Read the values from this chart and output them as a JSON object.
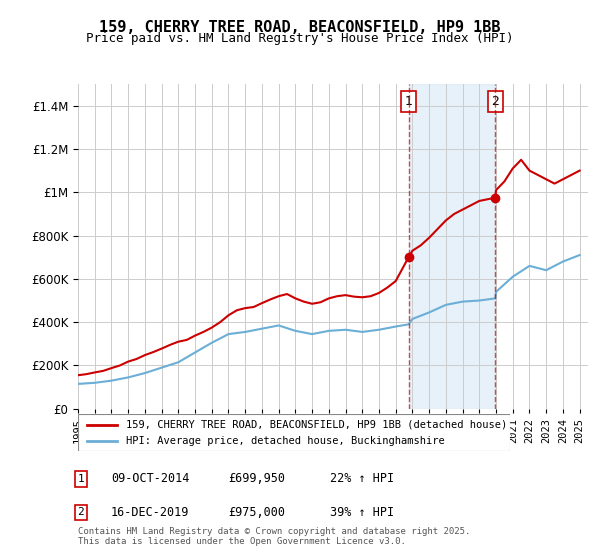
{
  "title": "159, CHERRY TREE ROAD, BEACONSFIELD, HP9 1BB",
  "subtitle": "Price paid vs. HM Land Registry's House Price Index (HPI)",
  "legend_line1": "159, CHERRY TREE ROAD, BEACONSFIELD, HP9 1BB (detached house)",
  "legend_line2": "HPI: Average price, detached house, Buckinghamshire",
  "footer": "Contains HM Land Registry data © Crown copyright and database right 2025.\nThis data is licensed under the Open Government Licence v3.0.",
  "annotation1_label": "1",
  "annotation1_date": "09-OCT-2014",
  "annotation1_price": "£699,950",
  "annotation1_hpi": "22% ↑ HPI",
  "annotation2_label": "2",
  "annotation2_date": "16-DEC-2019",
  "annotation2_price": "£975,000",
  "annotation2_hpi": "39% ↑ HPI",
  "purchase1_x": 2014.77,
  "purchase1_y": 699950,
  "purchase2_x": 2019.96,
  "purchase2_y": 975000,
  "hpi_color": "#6baed6",
  "price_color": "#cc0000",
  "shaded_color": "#d6e8f5",
  "annotation_line_color": "#cc0000",
  "ylim": [
    0,
    1500000
  ],
  "xlim_start": 1995.0,
  "xlim_end": 2025.5,
  "hpi_series_x": [
    1995,
    1996,
    1997,
    1998,
    1999,
    2000,
    2001,
    2002,
    2003,
    2004,
    2005,
    2006,
    2007,
    2008,
    2009,
    2010,
    2011,
    2012,
    2013,
    2014,
    2014.77,
    2015,
    2016,
    2017,
    2018,
    2019,
    2019.96,
    2020,
    2021,
    2022,
    2023,
    2024,
    2025
  ],
  "hpi_series_y": [
    115000,
    120000,
    130000,
    145000,
    165000,
    190000,
    215000,
    260000,
    305000,
    345000,
    355000,
    370000,
    385000,
    360000,
    345000,
    360000,
    365000,
    355000,
    365000,
    380000,
    390000,
    415000,
    445000,
    480000,
    495000,
    500000,
    510000,
    540000,
    610000,
    660000,
    640000,
    680000,
    710000
  ],
  "price_series_x": [
    1995,
    1995.5,
    1996,
    1996.5,
    1997,
    1997.5,
    1998,
    1998.5,
    1999,
    1999.5,
    2000,
    2000.5,
    2001,
    2001.5,
    2002,
    2002.5,
    2003,
    2003.5,
    2004,
    2004.5,
    2005,
    2005.5,
    2006,
    2006.5,
    2007,
    2007.5,
    2008,
    2008.5,
    2009,
    2009.5,
    2010,
    2010.5,
    2011,
    2011.5,
    2012,
    2012.5,
    2013,
    2013.5,
    2014,
    2014.77,
    2015,
    2015.5,
    2016,
    2016.5,
    2017,
    2017.5,
    2018,
    2018.5,
    2019,
    2019.96,
    2020,
    2020.5,
    2021,
    2021.5,
    2022,
    2022.5,
    2023,
    2023.5,
    2024,
    2024.5,
    2025
  ],
  "price_series_y": [
    155000,
    160000,
    168000,
    175000,
    188000,
    200000,
    218000,
    230000,
    248000,
    262000,
    278000,
    295000,
    310000,
    318000,
    338000,
    355000,
    375000,
    400000,
    432000,
    455000,
    465000,
    470000,
    488000,
    505000,
    520000,
    530000,
    510000,
    495000,
    485000,
    492000,
    510000,
    520000,
    525000,
    518000,
    515000,
    520000,
    535000,
    560000,
    590000,
    699950,
    730000,
    755000,
    790000,
    830000,
    870000,
    900000,
    920000,
    940000,
    960000,
    975000,
    1010000,
    1050000,
    1110000,
    1150000,
    1100000,
    1080000,
    1060000,
    1040000,
    1060000,
    1080000,
    1100000
  ]
}
